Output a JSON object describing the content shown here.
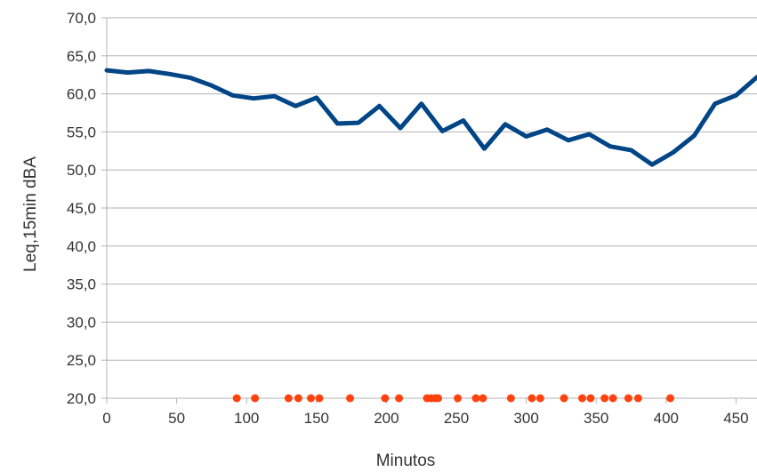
{
  "chart_data": {
    "type": "line",
    "title": "",
    "xlabel": "Minutos",
    "ylabel": "Leq,15min dBA",
    "xlim": [
      0,
      465
    ],
    "ylim": [
      20,
      70
    ],
    "x_ticks": [
      0,
      50,
      100,
      150,
      200,
      250,
      300,
      350,
      400,
      450
    ],
    "x_tick_labels": [
      "0",
      "50",
      "100",
      "150",
      "200",
      "250",
      "300",
      "350",
      "400",
      "450"
    ],
    "y_ticks": [
      20,
      25,
      30,
      35,
      40,
      45,
      50,
      55,
      60,
      65,
      70
    ],
    "y_tick_labels": [
      "20,0",
      "25,0",
      "30,0",
      "35,0",
      "40,0",
      "45,0",
      "50,0",
      "55,0",
      "60,0",
      "65,0",
      "70,0"
    ],
    "grid": "horizontal",
    "legend": "none",
    "colors": {
      "line": "#004586",
      "events": "#ff420e",
      "grid": "#b3b3b3",
      "text": "#333333"
    },
    "series": [
      {
        "type": "line",
        "x": [
          0,
          15,
          30,
          45,
          60,
          75,
          90,
          105,
          120,
          135,
          150,
          165,
          180,
          195,
          210,
          225,
          240,
          255,
          270,
          285,
          300,
          315,
          330,
          345,
          360,
          375,
          390,
          405,
          420,
          435,
          450,
          465
        ],
        "y": [
          63.1,
          62.8,
          63.0,
          62.6,
          62.1,
          61.1,
          59.8,
          59.4,
          59.7,
          58.4,
          59.5,
          56.1,
          56.2,
          58.4,
          55.5,
          58.7,
          55.1,
          56.5,
          52.8,
          56.0,
          54.4,
          55.3,
          53.9,
          54.7,
          53.1,
          52.6,
          50.7,
          52.3,
          54.5,
          58.7,
          59.8,
          62.2
        ]
      },
      {
        "type": "scatter",
        "x": [
          93,
          106,
          130,
          137,
          146,
          152,
          174,
          199,
          209,
          229,
          232,
          235,
          237,
          251,
          264,
          269,
          289,
          304,
          310,
          327,
          340,
          346,
          356,
          362,
          373,
          380,
          403
        ],
        "y": [
          20,
          20,
          20,
          20,
          20,
          20,
          20,
          20,
          20,
          20,
          20,
          20,
          20,
          20,
          20,
          20,
          20,
          20,
          20,
          20,
          20,
          20,
          20,
          20,
          20,
          20,
          20
        ]
      }
    ]
  }
}
